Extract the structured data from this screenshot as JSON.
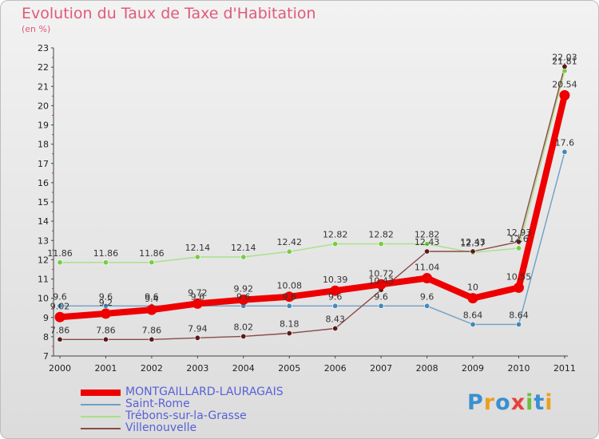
{
  "title": "Evolution du Taux de Taxe d'Habitation",
  "unit_label": "(en %)",
  "logo": "Proxiti",
  "colors": {
    "title": "#e05a78",
    "legend_text": "#5860d8"
  },
  "chart_data": {
    "type": "line",
    "title": "Evolution du Taux de Taxe d'Habitation",
    "ylabel": "(en %)",
    "xlabel": "",
    "x": [
      "2000",
      "2001",
      "2002",
      "2003",
      "2004",
      "2005",
      "2006",
      "2007",
      "2008",
      "2009",
      "2010",
      "2011"
    ],
    "ylim": [
      7,
      23
    ],
    "yticks": [
      "7",
      "8",
      "9",
      "10",
      "11",
      "12",
      "13",
      "14",
      "15",
      "16",
      "17",
      "18",
      "19",
      "20",
      "21",
      "22",
      "23"
    ],
    "grid": false,
    "series": [
      {
        "name": "MONTGAILLARD-LAURAGAIS",
        "color": "#ee0000",
        "point_color": "#ee0000",
        "values": [
          9.02,
          9.2,
          9.4,
          9.72,
          9.92,
          10.08,
          10.39,
          10.72,
          11.04,
          10,
          10.55,
          20.54
        ],
        "labels": [
          "9.02",
          "9.2",
          "9.4",
          "9.72",
          "9.92",
          "10.08",
          "10.39",
          "10.72",
          "11.04",
          "10",
          "10.55",
          "20.54"
        ]
      },
      {
        "name": "Saint-Rome",
        "color": "#6f9fc6",
        "point_color": "#4488bb",
        "values": [
          9.6,
          9.6,
          9.6,
          9.6,
          9.6,
          9.6,
          9.6,
          9.6,
          9.6,
          8.64,
          8.64,
          17.6
        ],
        "labels": [
          "9.6",
          "9.6",
          "9.6",
          "9.6",
          "9.6",
          "9.6",
          "9.6",
          "9.6",
          "9.6",
          "8.64",
          "8.64",
          "17.6"
        ]
      },
      {
        "name": "Trébons-sur-la-Grasse",
        "color": "#a8e088",
        "point_color": "#77cc44",
        "values": [
          11.86,
          11.86,
          11.86,
          12.14,
          12.14,
          12.42,
          12.82,
          12.82,
          12.82,
          12.37,
          12.6,
          21.81
        ],
        "labels": [
          "11.86",
          "11.86",
          "11.86",
          "12.14",
          "12.14",
          "12.42",
          "12.82",
          "12.82",
          "12.82",
          "12.37",
          "12.6",
          "21.81"
        ]
      },
      {
        "name": "Villenouvelle",
        "color": "#8b4a4a",
        "point_color": "#5a1a1a",
        "values": [
          7.86,
          7.86,
          7.86,
          7.94,
          8.02,
          8.18,
          8.43,
          10.43,
          12.43,
          12.43,
          12.93,
          22.03
        ],
        "labels": [
          "7.86",
          "7.86",
          "7.86",
          "7.94",
          "8.02",
          "8.18",
          "8.43",
          "10.43",
          "12.43",
          "12.43",
          "12.93",
          "22.03"
        ]
      }
    ]
  }
}
